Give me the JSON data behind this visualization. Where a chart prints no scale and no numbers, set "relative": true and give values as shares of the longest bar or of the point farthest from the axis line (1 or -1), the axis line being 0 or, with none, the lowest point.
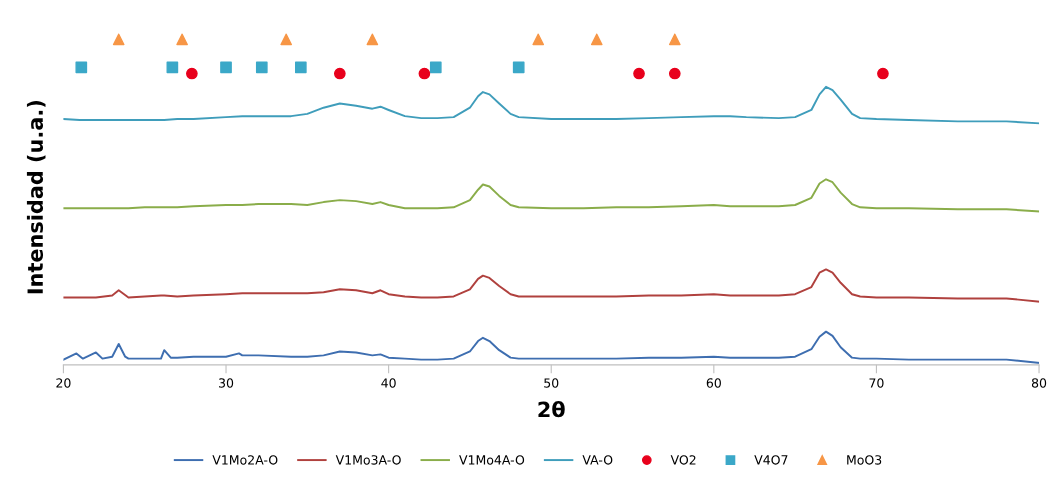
{
  "chart_data": {
    "type": "line",
    "relative": true,
    "xlabel": "2θ",
    "ylabel": "Intensidad (u.a.)",
    "xlim": [
      20,
      80
    ],
    "xticks": [
      20,
      30,
      40,
      50,
      60,
      70,
      80
    ],
    "grid": false,
    "legend": "bottom",
    "line_style": "solid",
    "marker": "none",
    "series": [
      {
        "name": "V1Mo2A-O",
        "color": "#3e6eb0",
        "x": [
          20,
          20.8,
          21.2,
          22,
          22.4,
          23,
          23.4,
          23.8,
          24,
          25,
          26,
          26.2,
          26.6,
          27,
          28,
          30,
          30.8,
          31,
          32,
          34,
          35,
          36,
          37,
          38,
          39,
          39.5,
          40,
          41,
          42,
          43,
          44,
          45,
          45.5,
          45.8,
          46.2,
          46.8,
          47.5,
          48,
          50,
          52,
          54,
          56,
          58,
          60,
          61,
          62,
          64,
          65,
          66,
          66.5,
          66.9,
          67.3,
          67.8,
          68.5,
          69,
          70,
          72,
          75,
          78,
          80
        ],
        "values": [
          0.016,
          0.035,
          0.019,
          0.038,
          0.019,
          0.025,
          0.064,
          0.025,
          0.019,
          0.019,
          0.019,
          0.045,
          0.022,
          0.022,
          0.025,
          0.025,
          0.035,
          0.029,
          0.029,
          0.025,
          0.025,
          0.029,
          0.041,
          0.038,
          0.029,
          0.032,
          0.022,
          0.019,
          0.016,
          0.016,
          0.019,
          0.041,
          0.073,
          0.083,
          0.073,
          0.045,
          0.022,
          0.019,
          0.019,
          0.019,
          0.019,
          0.022,
          0.022,
          0.025,
          0.022,
          0.022,
          0.022,
          0.025,
          0.048,
          0.086,
          0.102,
          0.089,
          0.054,
          0.022,
          0.019,
          0.019,
          0.016,
          0.016,
          0.016,
          0.006
        ]
      },
      {
        "name": "V1Mo3A-O",
        "color": "#b0413e",
        "x": [
          20,
          21,
          22,
          23,
          23.4,
          24,
          25,
          26,
          26.2,
          27,
          28,
          30,
          31,
          32,
          34,
          35,
          36,
          37,
          38,
          39,
          39.5,
          40,
          41,
          42,
          43,
          44,
          45,
          45.5,
          45.8,
          46.2,
          46.8,
          47.5,
          48,
          50,
          52,
          54,
          56,
          58,
          60,
          61,
          62,
          64,
          65,
          66,
          66.5,
          66.9,
          67.3,
          67.8,
          68.5,
          69,
          70,
          72,
          75,
          78,
          80
        ],
        "values": [
          0.207,
          0.207,
          0.207,
          0.213,
          0.229,
          0.207,
          0.21,
          0.213,
          0.213,
          0.21,
          0.213,
          0.217,
          0.22,
          0.22,
          0.22,
          0.22,
          0.223,
          0.232,
          0.229,
          0.22,
          0.229,
          0.217,
          0.21,
          0.207,
          0.207,
          0.21,
          0.232,
          0.264,
          0.274,
          0.267,
          0.242,
          0.217,
          0.21,
          0.21,
          0.21,
          0.21,
          0.213,
          0.213,
          0.217,
          0.213,
          0.213,
          0.213,
          0.217,
          0.239,
          0.283,
          0.293,
          0.283,
          0.252,
          0.217,
          0.21,
          0.207,
          0.207,
          0.204,
          0.204,
          0.194
        ]
      },
      {
        "name": "V1Mo4A-O",
        "color": "#8aad4a",
        "x": [
          20,
          21,
          22,
          23,
          23.4,
          24,
          25,
          26,
          26.2,
          27,
          28,
          30,
          31,
          32,
          34,
          35,
          36,
          37,
          38,
          39,
          39.5,
          40,
          41,
          42,
          43,
          44,
          45,
          45.5,
          45.8,
          46.2,
          46.8,
          47.5,
          48,
          50,
          52,
          54,
          56,
          58,
          60,
          61,
          62,
          64,
          65,
          66,
          66.5,
          66.9,
          67.3,
          67.8,
          68.5,
          69,
          70,
          72,
          75,
          78,
          80
        ],
        "values": [
          0.481,
          0.481,
          0.481,
          0.481,
          0.481,
          0.481,
          0.484,
          0.484,
          0.484,
          0.484,
          0.487,
          0.491,
          0.491,
          0.494,
          0.494,
          0.491,
          0.5,
          0.506,
          0.503,
          0.494,
          0.5,
          0.491,
          0.481,
          0.481,
          0.481,
          0.484,
          0.506,
          0.538,
          0.554,
          0.548,
          0.519,
          0.491,
          0.484,
          0.481,
          0.481,
          0.484,
          0.484,
          0.487,
          0.491,
          0.487,
          0.487,
          0.487,
          0.491,
          0.513,
          0.557,
          0.57,
          0.561,
          0.529,
          0.494,
          0.484,
          0.481,
          0.481,
          0.478,
          0.478,
          0.471
        ]
      },
      {
        "name": "VA-O",
        "color": "#3f9dbb",
        "x": [
          20,
          21,
          22,
          23,
          23.4,
          24,
          25,
          26,
          26.2,
          27,
          28,
          30,
          31,
          32,
          34,
          35,
          36,
          37,
          38,
          39,
          39.5,
          40,
          41,
          42,
          43,
          44,
          45,
          45.5,
          45.8,
          46.2,
          46.8,
          47.5,
          48,
          50,
          52,
          54,
          56,
          58,
          60,
          61,
          62,
          64,
          65,
          66,
          66.5,
          66.9,
          67.3,
          67.8,
          68.5,
          69,
          70,
          72,
          75,
          78,
          80
        ],
        "values": [
          0.755,
          0.752,
          0.752,
          0.752,
          0.752,
          0.752,
          0.752,
          0.752,
          0.752,
          0.755,
          0.755,
          0.761,
          0.764,
          0.764,
          0.764,
          0.771,
          0.79,
          0.803,
          0.796,
          0.787,
          0.793,
          0.783,
          0.764,
          0.758,
          0.758,
          0.761,
          0.79,
          0.825,
          0.838,
          0.831,
          0.803,
          0.771,
          0.761,
          0.755,
          0.755,
          0.755,
          0.758,
          0.761,
          0.764,
          0.764,
          0.761,
          0.758,
          0.761,
          0.783,
          0.831,
          0.854,
          0.844,
          0.815,
          0.771,
          0.758,
          0.755,
          0.752,
          0.748,
          0.748,
          0.742
        ]
      },
      {
        "name": "VO2",
        "type": "scatter",
        "marker": "circle",
        "color": "#e8001c",
        "x": [
          27.9,
          37.0,
          42.2,
          55.4,
          57.6,
          70.4
        ],
        "values": [
          0.895,
          0.895,
          0.895,
          0.895,
          0.895,
          0.895
        ]
      },
      {
        "name": "V4O7",
        "type": "scatter",
        "marker": "square",
        "color": "#3ba8c8",
        "x": [
          21.1,
          26.7,
          30.0,
          32.2,
          34.6,
          42.9,
          48.0
        ],
        "values": [
          0.914,
          0.914,
          0.914,
          0.914,
          0.914,
          0.914,
          0.914
        ]
      },
      {
        "name": "MoO3",
        "type": "scatter",
        "marker": "triangle",
        "color": "#f79646",
        "x": [
          23.4,
          27.3,
          33.7,
          39.0,
          49.2,
          52.8,
          57.6
        ],
        "values": [
          1,
          1,
          1,
          1,
          1,
          1,
          1
        ]
      }
    ]
  }
}
